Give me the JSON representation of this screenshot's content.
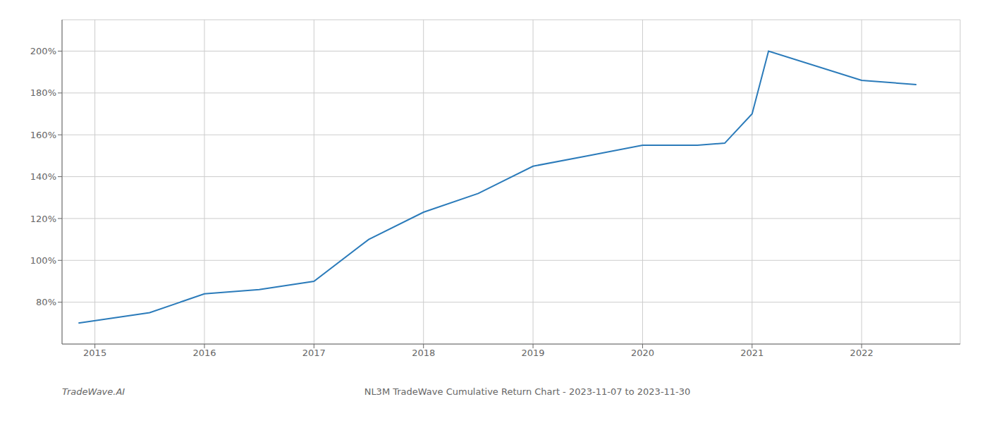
{
  "chart_data": {
    "type": "line",
    "title": "NL3M TradeWave Cumulative Return Chart - 2023-11-07 to 2023-11-30",
    "annotations": [
      "TradeWave.AI"
    ],
    "x": [
      2014.85,
      2015.5,
      2016.0,
      2016.5,
      2017.0,
      2017.5,
      2018.0,
      2018.5,
      2019.0,
      2019.5,
      2020.0,
      2020.5,
      2020.75,
      2021.0,
      2021.15,
      2022.0,
      2022.5
    ],
    "values": [
      70,
      75,
      84,
      86,
      90,
      110,
      123,
      132,
      145,
      150,
      155,
      155,
      156,
      170,
      200,
      186,
      184
    ],
    "color": "#2b7bba",
    "xlim": [
      2014.7,
      2022.9
    ],
    "ylim": [
      60,
      215
    ],
    "xticks": [
      2015,
      2016,
      2017,
      2018,
      2019,
      2020,
      2021,
      2022
    ],
    "yticks": [
      {
        "value": 80,
        "label": "80%"
      },
      {
        "value": 100,
        "label": "100%"
      },
      {
        "value": 120,
        "label": "120%"
      },
      {
        "value": 140,
        "label": "140%"
      },
      {
        "value": 160,
        "label": "160%"
      },
      {
        "value": 180,
        "label": "180%"
      },
      {
        "value": 200,
        "label": "200%"
      }
    ],
    "grid": true
  }
}
